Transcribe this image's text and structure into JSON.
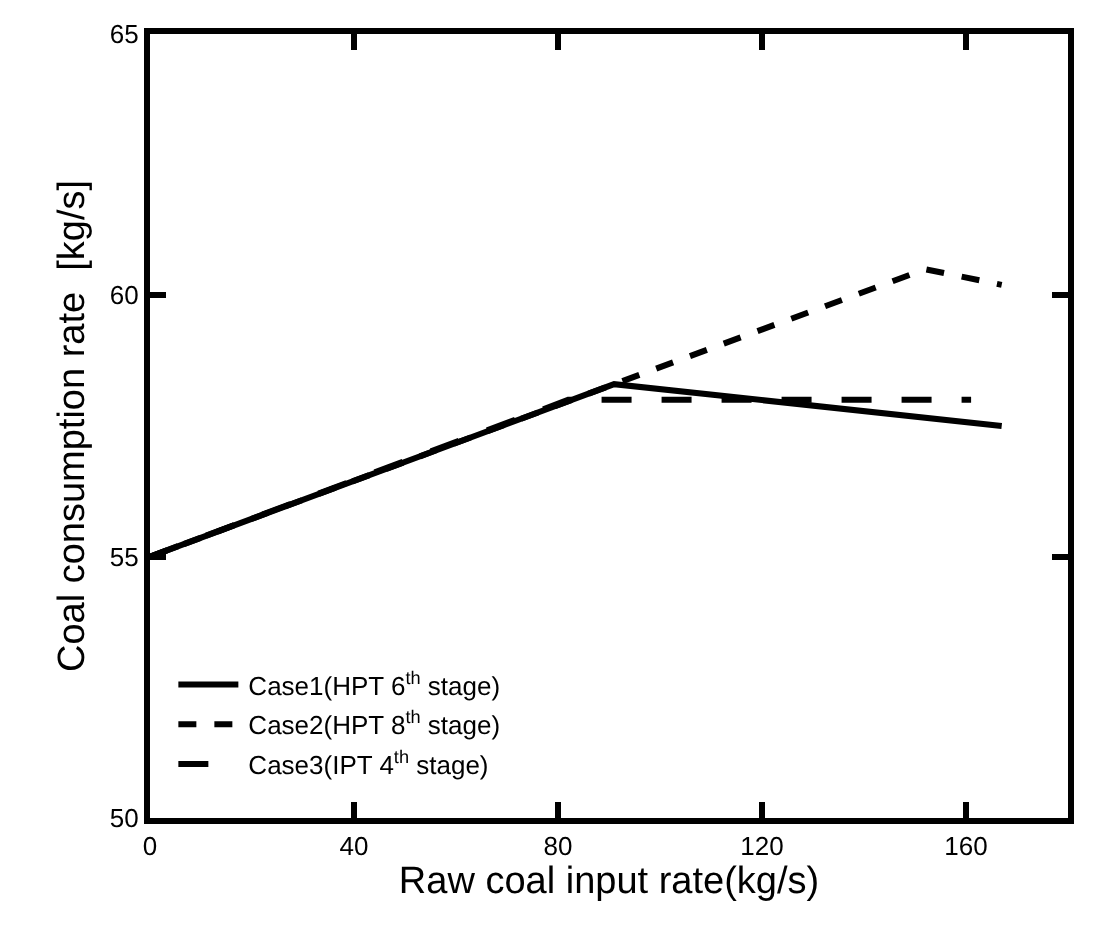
{
  "chart_data": {
    "type": "line",
    "xlabel": "Raw coal input rate(kg/s)",
    "ylabel": "Coal consumption rate  [kg/s]",
    "xlim": [
      0,
      180
    ],
    "xticks": [
      0,
      40,
      80,
      120,
      160
    ],
    "ylim": [
      50,
      65
    ],
    "yticks": [
      50,
      55,
      60,
      65
    ],
    "legend": "bottom left",
    "series": [
      {
        "name": "Case1(HPT 6$^{th}$ stage)",
        "color": "#000000",
        "line_style": "solid",
        "x": [
          0,
          91,
          167
        ],
        "values": [
          55,
          58.3,
          57.5
        ]
      },
      {
        "name": "Case2(HPT 8$^{th}$ stage)",
        "color": "#000000",
        "line_style": "dotted",
        "x": [
          0,
          91,
          152,
          167
        ],
        "values": [
          55,
          58.3,
          60.5,
          60.2
        ]
      },
      {
        "name": "Case3(IPT 4$^{th}$ stage)",
        "color": "#000000",
        "line_style": "dashed",
        "x": [
          0,
          82,
          161
        ],
        "values": [
          55,
          58,
          58
        ]
      }
    ]
  }
}
